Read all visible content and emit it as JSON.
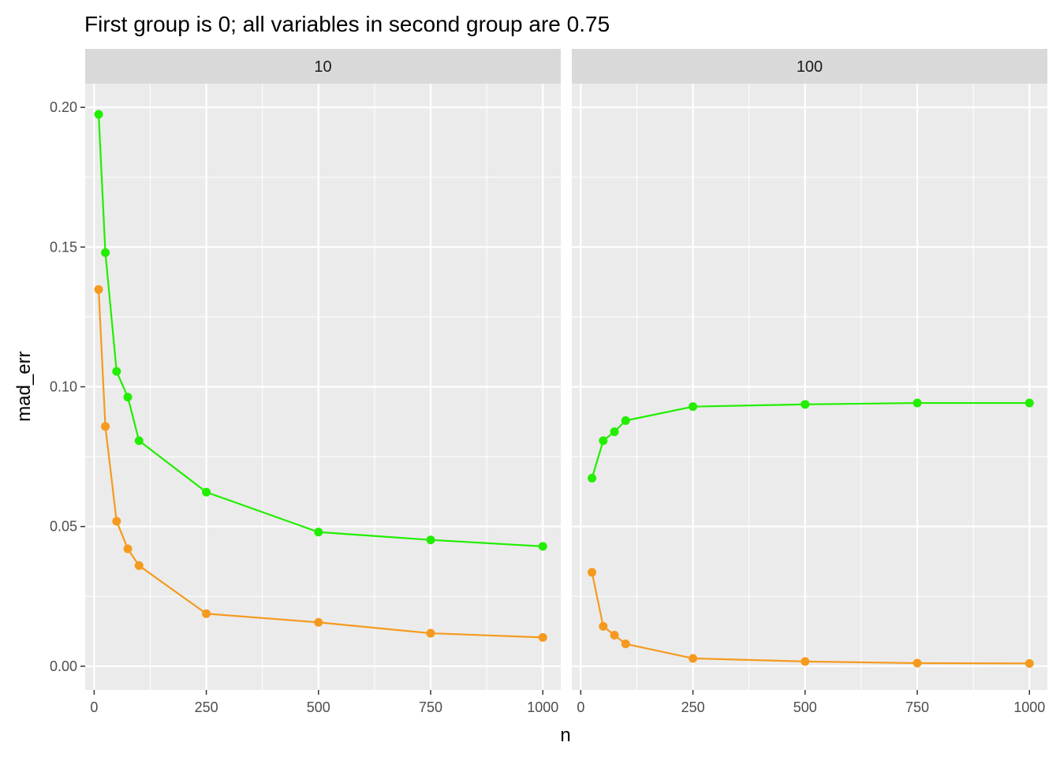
{
  "chart_data": {
    "type": "line",
    "title": "First group is 0; all variables in second group are 0.75",
    "xlabel": "n",
    "ylabel": "mad_err",
    "xlim": [
      -20,
      1040
    ],
    "ylim": [
      -0.0085,
      0.2085
    ],
    "x_ticks": [
      0,
      250,
      500,
      750,
      1000
    ],
    "x_tick_labels": [
      "0",
      "250",
      "500",
      "750",
      "1000"
    ],
    "y_ticks": [
      0.0,
      0.05,
      0.1,
      0.15,
      0.2
    ],
    "y_tick_labels": [
      "0.00",
      "0.05",
      "0.10",
      "0.15",
      "0.20"
    ],
    "grid": true,
    "legend": "none",
    "panels": [
      {
        "label": "10",
        "series": [
          {
            "color": "#22ee00",
            "x": [
              10,
              25,
              50,
              75,
              100,
              250,
              500,
              750,
              1000
            ],
            "y": [
              0.1975,
              0.148,
              0.1055,
              0.0963,
              0.0807,
              0.0623,
              0.048,
              0.0452,
              0.0429
            ]
          },
          {
            "color": "#f59a1e",
            "x": [
              10,
              25,
              50,
              75,
              100,
              250,
              500,
              750,
              1000
            ],
            "y": [
              0.1348,
              0.0858,
              0.0519,
              0.042,
              0.036,
              0.0188,
              0.0157,
              0.0118,
              0.0103
            ]
          }
        ]
      },
      {
        "label": "100",
        "series": [
          {
            "color": "#22ee00",
            "x": [
              25,
              50,
              75,
              100,
              250,
              500,
              750,
              1000
            ],
            "y": [
              0.0673,
              0.0807,
              0.0839,
              0.0879,
              0.0929,
              0.0937,
              0.0942,
              0.0942
            ]
          },
          {
            "color": "#f59a1e",
            "x": [
              25,
              50,
              75,
              100,
              250,
              500,
              750,
              1000
            ],
            "y": [
              0.0336,
              0.0143,
              0.0111,
              0.008,
              0.0028,
              0.0017,
              0.0011,
              0.001
            ]
          }
        ]
      }
    ]
  }
}
